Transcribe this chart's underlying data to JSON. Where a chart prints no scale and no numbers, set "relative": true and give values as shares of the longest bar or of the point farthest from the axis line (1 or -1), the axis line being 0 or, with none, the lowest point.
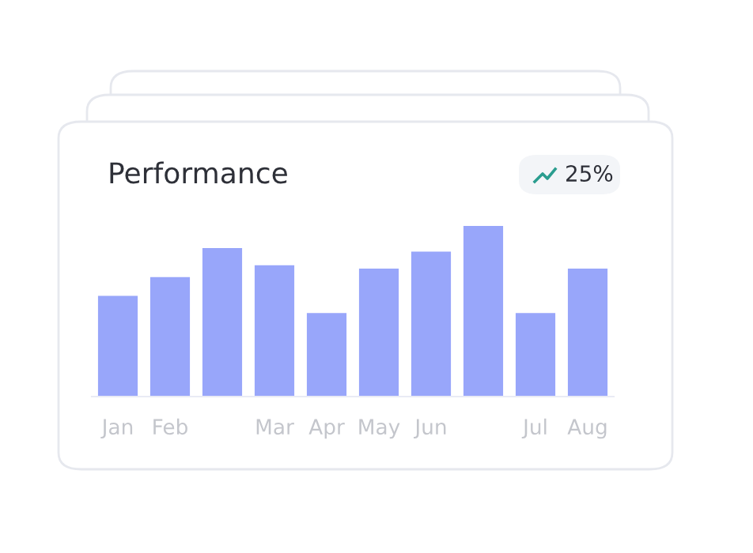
{
  "chart_data": {
    "type": "bar",
    "title": "Performance",
    "relative": true,
    "categories": [
      "Jan",
      "Feb",
      null,
      "Mar",
      "Apr",
      "May",
      "Jun",
      null,
      "Jul",
      "Aug"
    ],
    "values": [
      0.59,
      0.7,
      0.87,
      0.77,
      0.49,
      0.75,
      0.85,
      1,
      0.49,
      0.75
    ],
    "color": "#98a6fa",
    "annotations": [
      "25%"
    ],
    "grid": false,
    "legend": false
  }
}
